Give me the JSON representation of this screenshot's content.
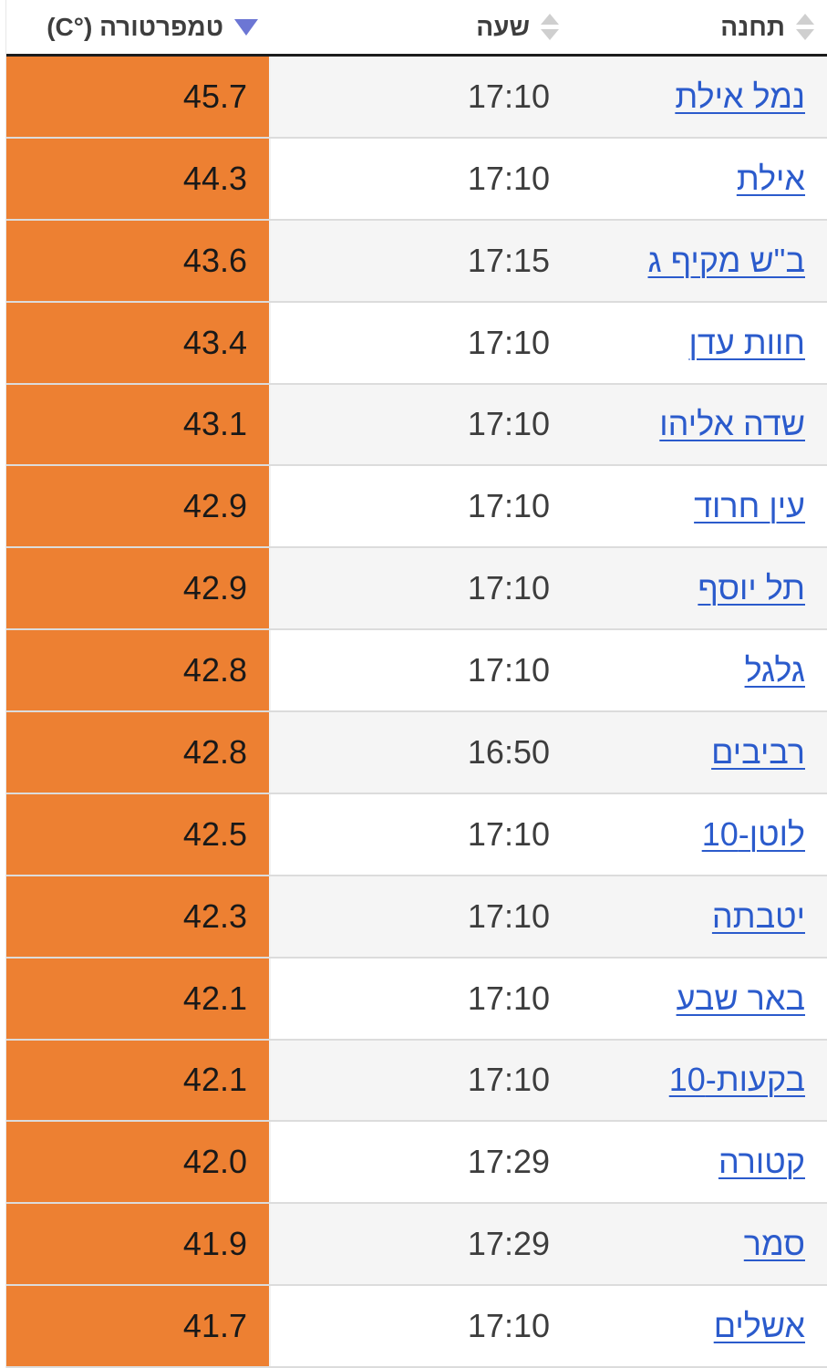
{
  "table": {
    "columns": [
      {
        "key": "station",
        "label": "תחנה",
        "sort": "none"
      },
      {
        "key": "time",
        "label": "שעה",
        "sort": "none"
      },
      {
        "key": "temperature",
        "label": "טמפרטורה (°C)",
        "sort": "desc"
      }
    ],
    "rows": [
      {
        "station": "נמל אילת",
        "time": "17:10",
        "temperature": "45.7"
      },
      {
        "station": "אילת",
        "time": "17:10",
        "temperature": "44.3"
      },
      {
        "station": "ב\"ש מקיף ג",
        "time": "17:15",
        "temperature": "43.6"
      },
      {
        "station": "חוות עדן",
        "time": "17:10",
        "temperature": "43.4"
      },
      {
        "station": "שדה אליהו",
        "time": "17:10",
        "temperature": "43.1"
      },
      {
        "station": "עין חרוד",
        "time": "17:10",
        "temperature": "42.9"
      },
      {
        "station": "תל יוסף",
        "time": "17:10",
        "temperature": "42.9"
      },
      {
        "station": "גלגל",
        "time": "17:10",
        "temperature": "42.8"
      },
      {
        "station": "רביבים",
        "time": "16:50",
        "temperature": "42.8"
      },
      {
        "station": "לוטן-10",
        "time": "17:10",
        "temperature": "42.5"
      },
      {
        "station": "יטבתה",
        "time": "17:10",
        "temperature": "42.3"
      },
      {
        "station": "באר שבע",
        "time": "17:10",
        "temperature": "42.1"
      },
      {
        "station": "בקעות-10",
        "time": "17:10",
        "temperature": "42.1"
      },
      {
        "station": "קטורה",
        "time": "17:29",
        "temperature": "42.0"
      },
      {
        "station": "סמר",
        "time": "17:29",
        "temperature": "41.9"
      },
      {
        "station": "אשלים",
        "time": "17:10",
        "temperature": "41.7"
      }
    ]
  },
  "icons": {
    "sort_idle": "sort-toggle-icon",
    "sort_active": "sort-descending-icon"
  },
  "colors": {
    "accent_orange": "#ED8032",
    "link_blue": "#2B5BCC",
    "sort_active_blue": "#6C76D4",
    "sort_idle_gray": "#CFCFCF",
    "header_border_dark": "#1C1C1C",
    "row_alt_gray": "#F5F5F5",
    "row_divider": "#DCDCDC"
  }
}
